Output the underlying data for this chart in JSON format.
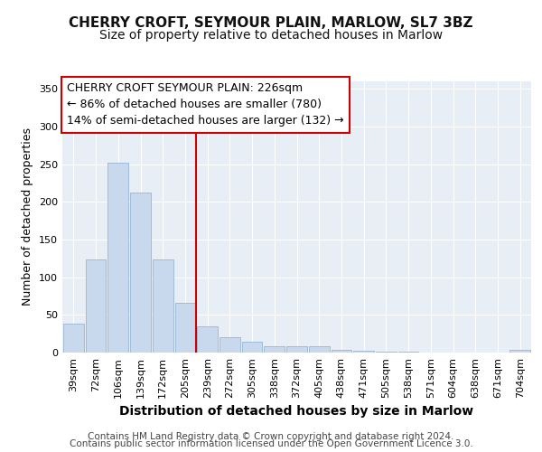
{
  "title": "CHERRY CROFT, SEYMOUR PLAIN, MARLOW, SL7 3BZ",
  "subtitle": "Size of property relative to detached houses in Marlow",
  "xlabel": "Distribution of detached houses by size in Marlow",
  "ylabel": "Number of detached properties",
  "categories": [
    "39sqm",
    "72sqm",
    "106sqm",
    "139sqm",
    "172sqm",
    "205sqm",
    "239sqm",
    "272sqm",
    "305sqm",
    "338sqm",
    "372sqm",
    "405sqm",
    "438sqm",
    "471sqm",
    "505sqm",
    "538sqm",
    "571sqm",
    "604sqm",
    "638sqm",
    "671sqm",
    "704sqm"
  ],
  "values": [
    38,
    124,
    252,
    212,
    124,
    66,
    35,
    20,
    14,
    8,
    9,
    9,
    4,
    2,
    1,
    1,
    0,
    0,
    0,
    0,
    4
  ],
  "bar_color": "#c8d9ee",
  "bar_edge_color": "#a0bcd8",
  "background_color": "#ffffff",
  "plot_bg_color": "#e8eef5",
  "red_line_x": 6.0,
  "annotation_line1": "CHERRY CROFT SEYMOUR PLAIN: 226sqm",
  "annotation_line2": "← 86% of detached houses are smaller (780)",
  "annotation_line3": "14% of semi-detached houses are larger (132) →",
  "annotation_box_color": "#ffffff",
  "annotation_border_color": "#cc0000",
  "ylim": [
    0,
    360
  ],
  "yticks": [
    0,
    50,
    100,
    150,
    200,
    250,
    300,
    350
  ],
  "footer_line1": "Contains HM Land Registry data © Crown copyright and database right 2024.",
  "footer_line2": "Contains public sector information licensed under the Open Government Licence 3.0.",
  "title_fontsize": 11,
  "subtitle_fontsize": 10,
  "xlabel_fontsize": 10,
  "ylabel_fontsize": 9,
  "tick_fontsize": 8,
  "annotation_fontsize": 9,
  "footer_fontsize": 7.5
}
